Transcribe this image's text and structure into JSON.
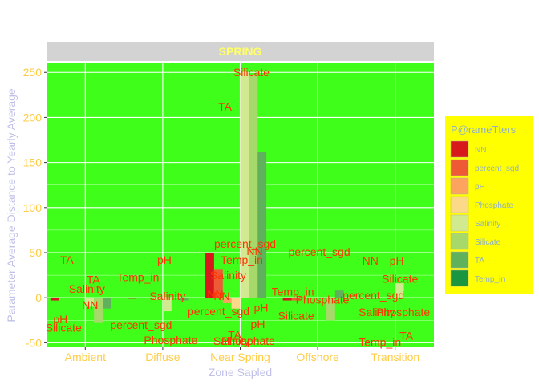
{
  "chart_data": {
    "type": "bar",
    "panel_title": "SPRING",
    "xlabel": "Zone Sapled",
    "ylabel": "Parameter Average Distance to Yearly Average",
    "categories": [
      "Ambient",
      "Diffuse",
      "Near Spring",
      "Offshore",
      "Transition"
    ],
    "ylim": [
      -55,
      260
    ],
    "yticks": [
      -50,
      0,
      50,
      100,
      150,
      200,
      250
    ],
    "grid": true,
    "legend": {
      "title": "P@rameTters",
      "position": "right"
    },
    "series": [
      {
        "name": "NN",
        "color": "#d7191c",
        "values": [
          -3,
          -1,
          50,
          -3,
          0
        ]
      },
      {
        "name": "percent_sgd",
        "color": "#ee5a36",
        "values": [
          0,
          0,
          31,
          -3,
          -1
        ]
      },
      {
        "name": "pH",
        "color": "#fba35f",
        "values": [
          0,
          0,
          -6,
          0,
          0
        ]
      },
      {
        "name": "Phosphate",
        "color": "#fbd988",
        "values": [
          0,
          -2,
          -12,
          0,
          0
        ]
      },
      {
        "name": "Salinity",
        "color": "#d2ea8f",
        "values": [
          -10,
          -15,
          250,
          0,
          16
        ]
      },
      {
        "name": "Silicate",
        "color": "#a6d96a",
        "values": [
          -28,
          0,
          247,
          -25,
          0
        ]
      },
      {
        "name": "TA",
        "color": "#5fb25b",
        "values": [
          -12,
          -3,
          162,
          8,
          0
        ]
      },
      {
        "name": "Temp_in",
        "color": "#1a9641",
        "values": [
          0,
          0,
          0,
          0,
          0
        ]
      }
    ],
    "annotations": [
      {
        "text": "Salinity",
        "x": "Ambient",
        "y": 10
      },
      {
        "text": "pH",
        "x": "Ambient",
        "y": -24
      },
      {
        "text": "NN",
        "x": "Ambient",
        "y": -8
      },
      {
        "text": "Silicate",
        "x": "Ambient",
        "y": -33
      },
      {
        "text": "TA",
        "x": "Ambient",
        "y": 20
      },
      {
        "text": "TA",
        "x": "Ambient",
        "y": 42
      },
      {
        "text": "pH",
        "x": "Diffuse",
        "y": 42
      },
      {
        "text": "Temp_in",
        "x": "Diffuse",
        "y": 23
      },
      {
        "text": "Salinity",
        "x": "Diffuse",
        "y": 2
      },
      {
        "text": "percent_sgd",
        "x": "Diffuse",
        "y": -30
      },
      {
        "text": "Phosphate",
        "x": "Diffuse",
        "y": -47
      },
      {
        "text": "Temp_in",
        "x": "Near Spring",
        "y": 42
      },
      {
        "text": "NN",
        "x": "Near Spring",
        "y": 4
      },
      {
        "text": "percent_sgd",
        "x": "Near Spring",
        "y": 60
      },
      {
        "text": "percent_sgd",
        "x": "Near Spring",
        "y": -15
      },
      {
        "text": "Phosphate",
        "x": "Near Spring",
        "y": -48
      },
      {
        "text": "NN",
        "x": "Near Spring",
        "y": 2
      },
      {
        "text": "Silicate",
        "x": "Near Spring",
        "y": 250
      },
      {
        "text": "TA",
        "x": "Near Spring",
        "y": 212
      },
      {
        "text": "NN",
        "x": "Near Spring",
        "y": 52
      },
      {
        "text": "Salinity",
        "x": "Near Spring",
        "y": 25
      },
      {
        "text": "pH",
        "x": "Near Spring",
        "y": -29
      },
      {
        "text": "Salinity",
        "x": "Near Spring",
        "y": -48
      },
      {
        "text": "pH",
        "x": "Near Spring",
        "y": -11
      },
      {
        "text": "TA",
        "x": "Near Spring",
        "y": -41
      },
      {
        "text": "percent_sgd",
        "x": "Offshore",
        "y": 51
      },
      {
        "text": "Temp_in",
        "x": "Offshore",
        "y": 7
      },
      {
        "text": "Phosphate",
        "x": "Offshore",
        "y": -2
      },
      {
        "text": "Silicate",
        "x": "Offshore",
        "y": -20
      },
      {
        "text": "pH",
        "x": "Transition",
        "y": 41
      },
      {
        "text": "NN",
        "x": "Transition",
        "y": 41
      },
      {
        "text": "Silicate",
        "x": "Transition",
        "y": 21
      },
      {
        "text": "percent_sgd",
        "x": "Transition",
        "y": 3
      },
      {
        "text": "Phosphate",
        "x": "Transition",
        "y": -16
      },
      {
        "text": "Salinity",
        "x": "Transition",
        "y": -16
      },
      {
        "text": "TA",
        "x": "Transition",
        "y": -42
      },
      {
        "text": "Temp_in",
        "x": "Transition",
        "y": -49
      }
    ]
  },
  "colors": {
    "panel_background": "#3fff1a",
    "strip_background": "#d3d3d3",
    "strip_text": "#ffff66",
    "axis_tick_text": "#ffcc44",
    "axis_title": "#c0c0e8",
    "annotation_text": "#ff3300",
    "legend_background": "#ffff00",
    "legend_title": "#8fb0c8",
    "legend_label": "#8fb0c8",
    "grid_major": "#ffffff"
  }
}
